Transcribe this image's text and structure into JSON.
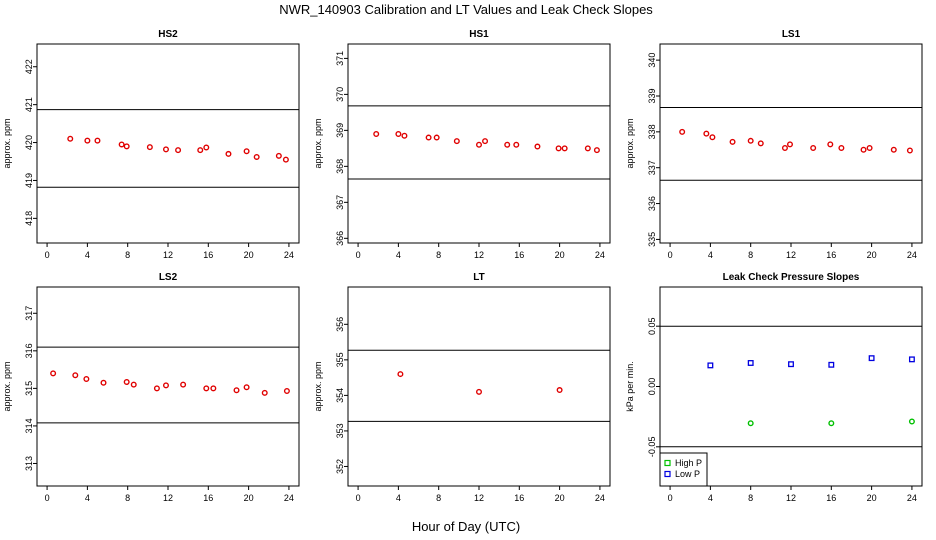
{
  "figure": {
    "title": "NWR_140903  Calibration and LT Values and Leak Check Slopes",
    "xlabel": "Hour of Day (UTC)"
  },
  "chart_data": [
    {
      "type": "scatter",
      "title": "HS2",
      "ylabel": "approx. ppm",
      "xlim": [
        -1,
        25
      ],
      "ylim": [
        417.35,
        422.6
      ],
      "xticks": [
        "0",
        "4",
        "8",
        "12",
        "16",
        "20",
        "24"
      ],
      "yticks": [
        "418",
        "419",
        "420",
        "421",
        "422"
      ],
      "hlines": [
        420.87,
        418.82
      ],
      "series": [
        {
          "color": "#e00000",
          "x": [
            2.3,
            4.0,
            5.0,
            7.4,
            7.9,
            10.2,
            11.8,
            13.0,
            15.2,
            15.8,
            18.0,
            19.8,
            20.8,
            23.0,
            23.7
          ],
          "y": [
            420.1,
            420.05,
            420.05,
            419.95,
            419.9,
            419.88,
            419.82,
            419.8,
            419.8,
            419.87,
            419.7,
            419.77,
            419.62,
            419.65,
            419.55
          ]
        }
      ]
    },
    {
      "type": "scatter",
      "title": "HS1",
      "ylabel": "approx. ppm",
      "xlim": [
        -1,
        25
      ],
      "ylim": [
        365.87,
        371.4
      ],
      "xticks": [
        "0",
        "4",
        "8",
        "12",
        "16",
        "20",
        "24"
      ],
      "yticks": [
        "366",
        "367",
        "368",
        "369",
        "370",
        "371"
      ],
      "hlines": [
        369.68,
        367.65
      ],
      "series": [
        {
          "color": "#e00000",
          "x": [
            1.8,
            4.0,
            4.6,
            7.0,
            7.8,
            9.8,
            12.0,
            12.6,
            14.8,
            15.7,
            17.8,
            19.9,
            20.5,
            22.8,
            23.7
          ],
          "y": [
            368.9,
            368.9,
            368.85,
            368.8,
            368.8,
            368.7,
            368.6,
            368.7,
            368.6,
            368.6,
            368.55,
            368.5,
            368.5,
            368.5,
            368.45
          ]
        }
      ]
    },
    {
      "type": "scatter",
      "title": "LS1",
      "ylabel": "approx. ppm",
      "xlim": [
        -1,
        25
      ],
      "ylim": [
        334.9,
        340.45
      ],
      "xticks": [
        "0",
        "4",
        "8",
        "12",
        "16",
        "20",
        "24"
      ],
      "yticks": [
        "335",
        "336",
        "337",
        "338",
        "339",
        "340"
      ],
      "hlines": [
        338.68,
        336.65
      ],
      "series": [
        {
          "color": "#e00000",
          "x": [
            1.2,
            3.6,
            4.2,
            6.2,
            8.0,
            9.0,
            11.4,
            11.9,
            14.2,
            15.9,
            17.0,
            19.2,
            19.8,
            22.2,
            23.8
          ],
          "y": [
            338.0,
            337.95,
            337.85,
            337.72,
            337.75,
            337.68,
            337.55,
            337.65,
            337.55,
            337.65,
            337.55,
            337.5,
            337.55,
            337.5,
            337.48
          ]
        }
      ]
    },
    {
      "type": "scatter",
      "title": "LS2",
      "ylabel": "approx. ppm",
      "xlim": [
        -1,
        25
      ],
      "ylim": [
        312.4,
        317.7
      ],
      "xticks": [
        "0",
        "4",
        "8",
        "12",
        "16",
        "20",
        "24"
      ],
      "yticks": [
        "313",
        "314",
        "315",
        "316",
        "317"
      ],
      "hlines": [
        316.1,
        314.08
      ],
      "series": [
        {
          "color": "#e00000",
          "x": [
            0.6,
            2.8,
            3.9,
            5.6,
            7.9,
            8.6,
            10.9,
            11.8,
            13.5,
            15.8,
            16.5,
            18.8,
            19.8,
            21.6,
            23.8
          ],
          "y": [
            315.4,
            315.35,
            315.25,
            315.15,
            315.17,
            315.1,
            315.0,
            315.08,
            315.1,
            315.0,
            315.0,
            314.95,
            315.03,
            314.88,
            314.93
          ]
        }
      ]
    },
    {
      "type": "scatter",
      "title": "LT",
      "ylabel": "approx. ppm",
      "xlim": [
        -1,
        25
      ],
      "ylim": [
        351.45,
        357.05
      ],
      "xticks": [
        "0",
        "4",
        "8",
        "12",
        "16",
        "20",
        "24"
      ],
      "yticks": [
        "352",
        "353",
        "354",
        "355",
        "356"
      ],
      "hlines": [
        355.27,
        353.27
      ],
      "series": [
        {
          "color": "#e00000",
          "x": [
            4.2,
            12.0,
            20.0
          ],
          "y": [
            354.6,
            354.1,
            354.15
          ]
        }
      ]
    },
    {
      "type": "scatter",
      "title": "Leak Check Pressure Slopes",
      "ylabel": "kPa per min.",
      "xlim": [
        -1,
        25
      ],
      "ylim": [
        -0.0825,
        0.0825
      ],
      "xticks": [
        "0",
        "4",
        "8",
        "12",
        "16",
        "20",
        "24"
      ],
      "yticks": [
        "-0.05",
        "0.00",
        "0.05"
      ],
      "hlines": [
        0.05,
        -0.05
      ],
      "legend": {
        "position": "bottom-left"
      },
      "series": [
        {
          "name": "High P",
          "color": "#00c000",
          "x": [
            8.0,
            16.0,
            24.0
          ],
          "y": [
            -0.0305,
            -0.0305,
            -0.029
          ]
        },
        {
          "name": "Low P",
          "color": "#0000e0",
          "x": [
            4.0,
            8.0,
            12.0,
            16.0,
            20.0,
            24.0
          ],
          "y": [
            0.0175,
            0.0195,
            0.0185,
            0.018,
            0.0235,
            0.0225
          ]
        }
      ]
    }
  ]
}
